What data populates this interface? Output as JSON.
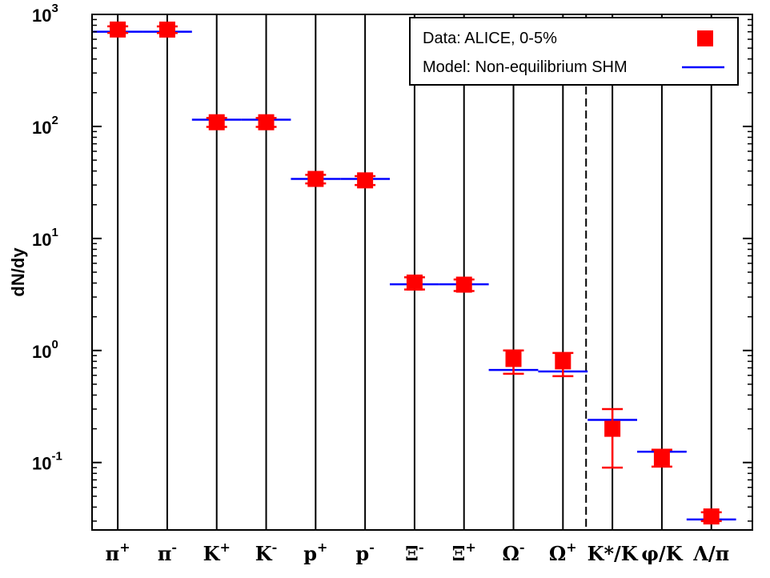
{
  "chart_data": {
    "type": "scatter",
    "ylabel": "dN/dy",
    "xlabel": "",
    "title": "",
    "yscale": "log",
    "ylim": [
      0.025,
      1000
    ],
    "yticks": [
      {
        "value": 1000,
        "base": "10",
        "exp": "3"
      },
      {
        "value": 100,
        "base": "10",
        "exp": "2"
      },
      {
        "value": 10,
        "base": "10",
        "exp": "1"
      },
      {
        "value": 1,
        "base": "10",
        "exp": "0"
      },
      {
        "value": 0.1,
        "base": "10",
        "exp": "-1"
      }
    ],
    "categories": [
      {
        "base": "π",
        "sup": "+"
      },
      {
        "base": "π",
        "sup": "-"
      },
      {
        "base": "K",
        "sup": "+"
      },
      {
        "base": "K",
        "sup": "-"
      },
      {
        "base": "p",
        "sup": "+"
      },
      {
        "base": "p",
        "sup": "-"
      },
      {
        "base": "Ξ",
        "sup": "-"
      },
      {
        "base": "Ξ",
        "sup": "+"
      },
      {
        "base": "Ω",
        "sup": "-"
      },
      {
        "base": "Ω",
        "sup": "+"
      },
      {
        "base": "K*/K",
        "sup": ""
      },
      {
        "base": "φ/K",
        "sup": ""
      },
      {
        "base": "Λ/π",
        "sup": ""
      }
    ],
    "series": [
      {
        "name": "Data: ALICE, 0-5%",
        "color": "#ff0000",
        "marker": "square",
        "values": [
          733,
          732,
          109,
          109,
          34,
          33,
          4.04,
          3.87,
          0.84,
          0.8,
          0.2,
          0.11,
          0.033
        ],
        "err_low": [
          683,
          682,
          99,
          99,
          31,
          30,
          3.5,
          3.4,
          0.62,
          0.59,
          0.09,
          0.092,
          0.03
        ],
        "err_high": [
          783,
          782,
          119,
          119,
          37,
          36,
          4.5,
          4.3,
          1.0,
          0.95,
          0.3,
          0.13,
          0.036
        ]
      },
      {
        "name": "Model: Non-equilibrium SHM",
        "color": "#0000ff",
        "values": [
          700,
          700,
          115,
          115,
          34,
          34,
          3.9,
          3.9,
          0.67,
          0.65,
          0.24,
          0.125,
          0.031
        ]
      }
    ],
    "separator_after_index": 9,
    "legend": "top-right",
    "grid": "vertical lines at categories"
  }
}
